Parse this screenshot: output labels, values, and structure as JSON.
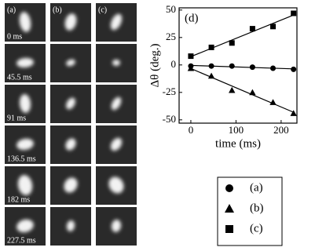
{
  "image_grid": {
    "columns": [
      "(a)",
      "(b)",
      "(c)"
    ],
    "rows": [
      "0 ms",
      "45.5 ms",
      "91 ms",
      "136.5 ms",
      "182 ms",
      "227.5 ms"
    ]
  },
  "chart_data": {
    "type": "scatter",
    "annotation": "(d)",
    "x_label": "time (ms)",
    "y_label": "Δθ (deg.)",
    "x": [
      0,
      45.5,
      91,
      136.5,
      182,
      227.5
    ],
    "series": [
      {
        "name": "(a)",
        "marker": "circle",
        "color": "#000000",
        "values": [
          -1,
          -1,
          -1,
          -2,
          -3,
          -4
        ]
      },
      {
        "name": "(b)",
        "marker": "triangle",
        "color": "#000000",
        "values": [
          -3,
          -10,
          -23,
          -25,
          -34,
          -44
        ]
      },
      {
        "name": "(c)",
        "marker": "square",
        "color": "#000000",
        "values": [
          8,
          16,
          20,
          33,
          35,
          47
        ]
      }
    ],
    "fit_lines": true,
    "xlim": [
      -26,
      235
    ],
    "ylim": [
      -53,
      52
    ],
    "xticks": [
      0,
      100,
      200
    ],
    "yticks": [
      -50,
      -25,
      0,
      25,
      50
    ]
  }
}
